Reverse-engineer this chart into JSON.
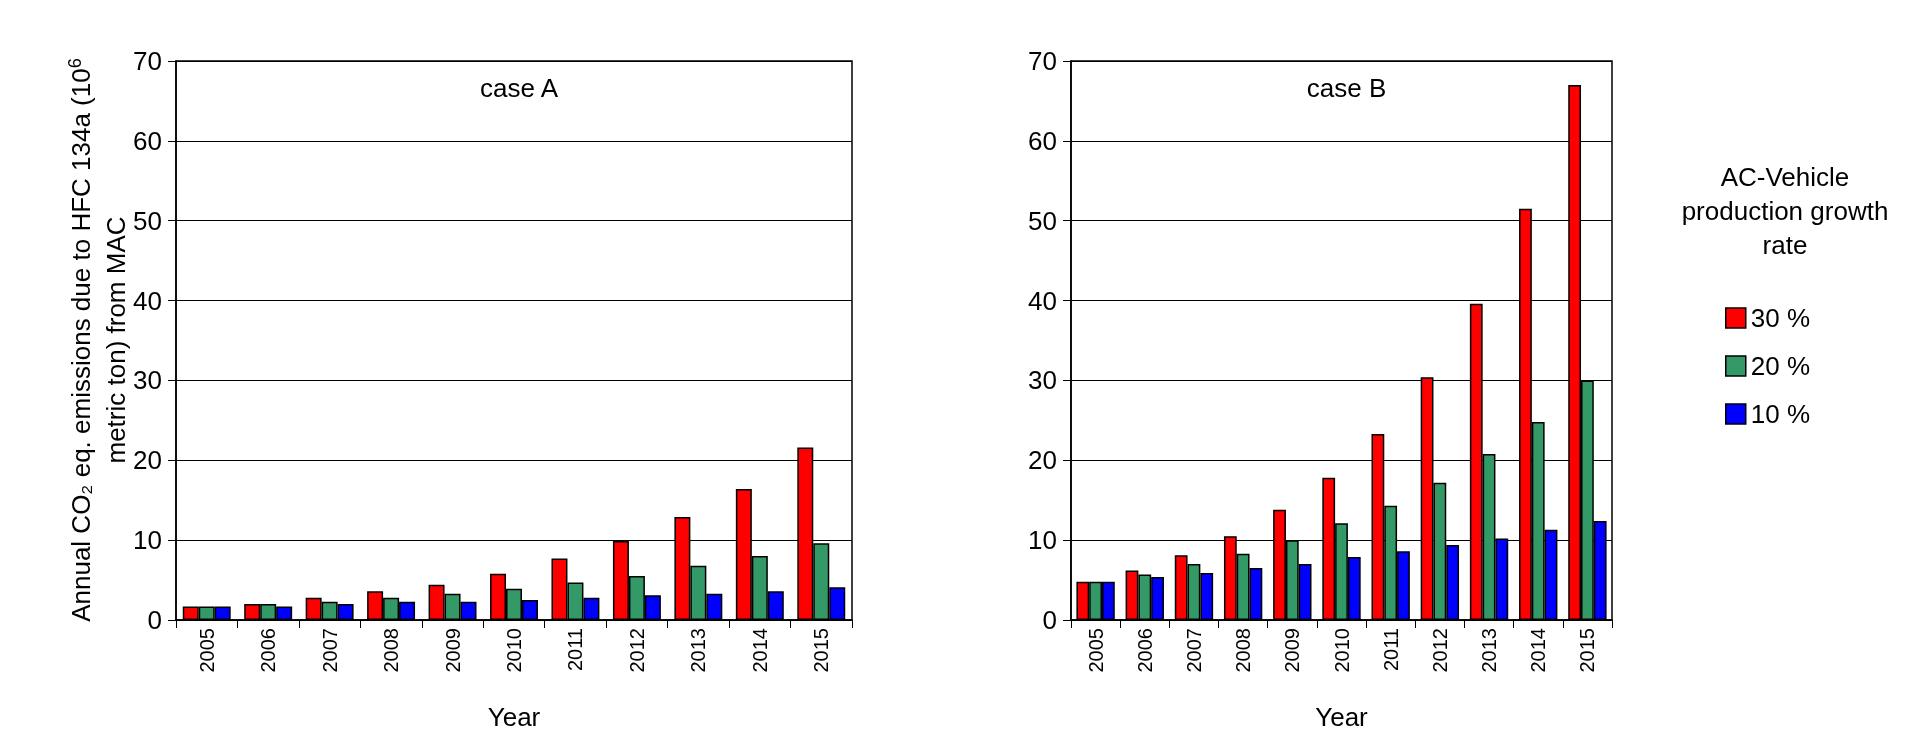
{
  "chart_data": [
    {
      "type": "bar",
      "title": "case A",
      "xlabel": "Year",
      "ylabel": "Annual CO₂ eq. emissions due to HFC 134a (10$^{6}$ metric ton) from MAC",
      "categories": [
        "2005",
        "2006",
        "2007",
        "2008",
        "2009",
        "2010",
        "2011",
        "2012",
        "2013",
        "2014",
        "2015"
      ],
      "series": [
        {
          "color": "#ff0000",
          "values": [
            1.7,
            2,
            2.8,
            3.6,
            4.4,
            5.8,
            7.7,
            9.9,
            12.9,
            16.4,
            21.6
          ]
        },
        {
          "color": "#339966",
          "values": [
            1.7,
            2,
            2.3,
            2.8,
            3.3,
            3.9,
            4.7,
            5.5,
            6.8,
            8,
            9.6
          ]
        },
        {
          "color": "#0000ff",
          "values": [
            1.7,
            1.7,
            2,
            2.3,
            2.3,
            2.5,
            2.8,
            3.1,
            3.3,
            3.6,
            4.1
          ]
        }
      ],
      "ylim": [
        0,
        70
      ],
      "yticks": [
        0,
        10,
        20,
        30,
        40,
        50,
        60,
        70
      ],
      "grid": "y",
      "legend": false
    },
    {
      "type": "bar",
      "title": "case B",
      "xlabel": "Year",
      "legend_title": "AC-Vehicle production growth rate",
      "categories": [
        "2005",
        "2006",
        "2007",
        "2008",
        "2009",
        "2010",
        "2011",
        "2012",
        "2013",
        "2014",
        "2015"
      ],
      "series": [
        {
          "name": "30 %",
          "color": "#ff0000",
          "values": [
            4.8,
            6.2,
            8.1,
            10.5,
            13.8,
            17.8,
            23.3,
            30.4,
            39.6,
            51.5,
            67
          ]
        },
        {
          "name": "20 %",
          "color": "#339966",
          "values": [
            4.8,
            5.7,
            7,
            8.3,
            10,
            12.1,
            14.3,
            17.2,
            20.8,
            24.8,
            30
          ]
        },
        {
          "name": "10 %",
          "color": "#0000ff",
          "values": [
            4.8,
            5.4,
            5.9,
            6.5,
            7,
            7.9,
            8.6,
            9.4,
            10.2,
            11.3,
            12.4
          ]
        }
      ],
      "ylim": [
        0,
        70
      ],
      "yticks": [
        0,
        10,
        20,
        30,
        40,
        50,
        60,
        70
      ],
      "grid": "y",
      "legend": "right"
    }
  ]
}
